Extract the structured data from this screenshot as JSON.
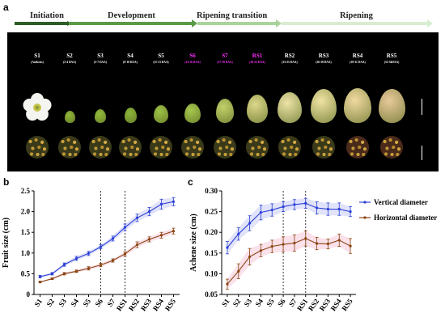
{
  "panels": {
    "a": "a",
    "b": "b",
    "c": "c"
  },
  "stage_bar": {
    "phases": [
      "Initiation",
      "Development",
      "Ripening transition",
      "Ripening"
    ],
    "colors": [
      "#2e5e26",
      "#5a9a46",
      "#a9d39a",
      "#d8ecd0"
    ]
  },
  "stages": [
    {
      "name": "S1",
      "daa": "(Anthesis)",
      "magenta": false
    },
    {
      "name": "S2",
      "daa": "(2-4 DAA)",
      "magenta": false
    },
    {
      "name": "S3",
      "daa": "(5-7 DAA)",
      "magenta": false
    },
    {
      "name": "S4",
      "daa": "(8-10 DAA)",
      "magenta": false
    },
    {
      "name": "S5",
      "daa": "(11-13 DAA)",
      "magenta": false
    },
    {
      "name": "S6",
      "daa": "(14-16 DAA)",
      "magenta": true
    },
    {
      "name": "S7",
      "daa": "(17-19 DAA)",
      "magenta": true
    },
    {
      "name": "RS1",
      "daa": "(20-22 DAA)",
      "magenta": true
    },
    {
      "name": "RS2",
      "daa": "(23-25 DAA)",
      "magenta": false
    },
    {
      "name": "RS3",
      "daa": "(26-28 DAA)",
      "magenta": false
    },
    {
      "name": "RS4",
      "daa": "(29-31 DAA)",
      "magenta": false
    },
    {
      "name": "RS5",
      "daa": "(32-34DAA)",
      "magenta": false
    }
  ],
  "chart_data": [
    {
      "type": "line",
      "panel": "b",
      "categories": [
        "S1",
        "S2",
        "S3",
        "S4",
        "S5",
        "S6",
        "S7",
        "RS1",
        "RS2",
        "RS3",
        "RS4",
        "RS5"
      ],
      "ylabel": "Fruit size (cm)",
      "ylim": [
        0,
        2.5
      ],
      "yticks": [
        "0",
        "0.5",
        "1.0",
        "1.5",
        "2.0",
        "2.5"
      ],
      "ytick_values": [
        0,
        0.5,
        1.0,
        1.5,
        2.0,
        2.5
      ],
      "vlines_at": [
        "S6",
        "RS1"
      ],
      "series": [
        {
          "color": "#2b3fd6",
          "values": [
            0.43,
            0.5,
            0.72,
            0.87,
            0.99,
            1.15,
            1.35,
            1.62,
            1.85,
            2.0,
            2.18,
            2.24
          ],
          "errors": [
            0.03,
            0.03,
            0.04,
            0.05,
            0.05,
            0.05,
            0.06,
            0.08,
            0.09,
            0.1,
            0.12,
            0.1
          ]
        },
        {
          "color": "#8b4513",
          "values": [
            0.3,
            0.38,
            0.5,
            0.56,
            0.63,
            0.71,
            0.82,
            0.98,
            1.2,
            1.33,
            1.43,
            1.53
          ],
          "errors": [
            0.02,
            0.02,
            0.03,
            0.03,
            0.04,
            0.04,
            0.04,
            0.05,
            0.07,
            0.06,
            0.07,
            0.07
          ]
        }
      ]
    },
    {
      "type": "line",
      "panel": "c",
      "categories": [
        "S1",
        "S2",
        "S3",
        "S4",
        "S5",
        "S6",
        "S7",
        "RS1",
        "RS2",
        "RS3",
        "RS4",
        "RS5"
      ],
      "ylabel": "Achene size (cm)",
      "ylim": [
        0.05,
        0.3
      ],
      "yticks": [
        "0.05",
        "0.10",
        "0.15",
        "0.20",
        "0.25",
        "0.30"
      ],
      "ytick_values": [
        0.05,
        0.1,
        0.15,
        0.2,
        0.25,
        0.3
      ],
      "vlines_at": [
        "S6",
        "RS1"
      ],
      "legend_position": "right",
      "series": [
        {
          "name": "Vertical diameter",
          "color": "#2b3fd6",
          "values": [
            0.163,
            0.196,
            0.222,
            0.248,
            0.254,
            0.262,
            0.267,
            0.27,
            0.259,
            0.256,
            0.256,
            0.25
          ],
          "errors": [
            0.015,
            0.015,
            0.018,
            0.018,
            0.015,
            0.012,
            0.012,
            0.012,
            0.015,
            0.015,
            0.015,
            0.012
          ]
        },
        {
          "name": "Horizontal diameter",
          "color": "#8b4513",
          "values": [
            0.075,
            0.106,
            0.141,
            0.156,
            0.166,
            0.171,
            0.174,
            0.185,
            0.173,
            0.172,
            0.181,
            0.167
          ],
          "errors": [
            0.012,
            0.018,
            0.02,
            0.015,
            0.015,
            0.018,
            0.02,
            0.018,
            0.015,
            0.012,
            0.015,
            0.018
          ]
        }
      ]
    }
  ]
}
